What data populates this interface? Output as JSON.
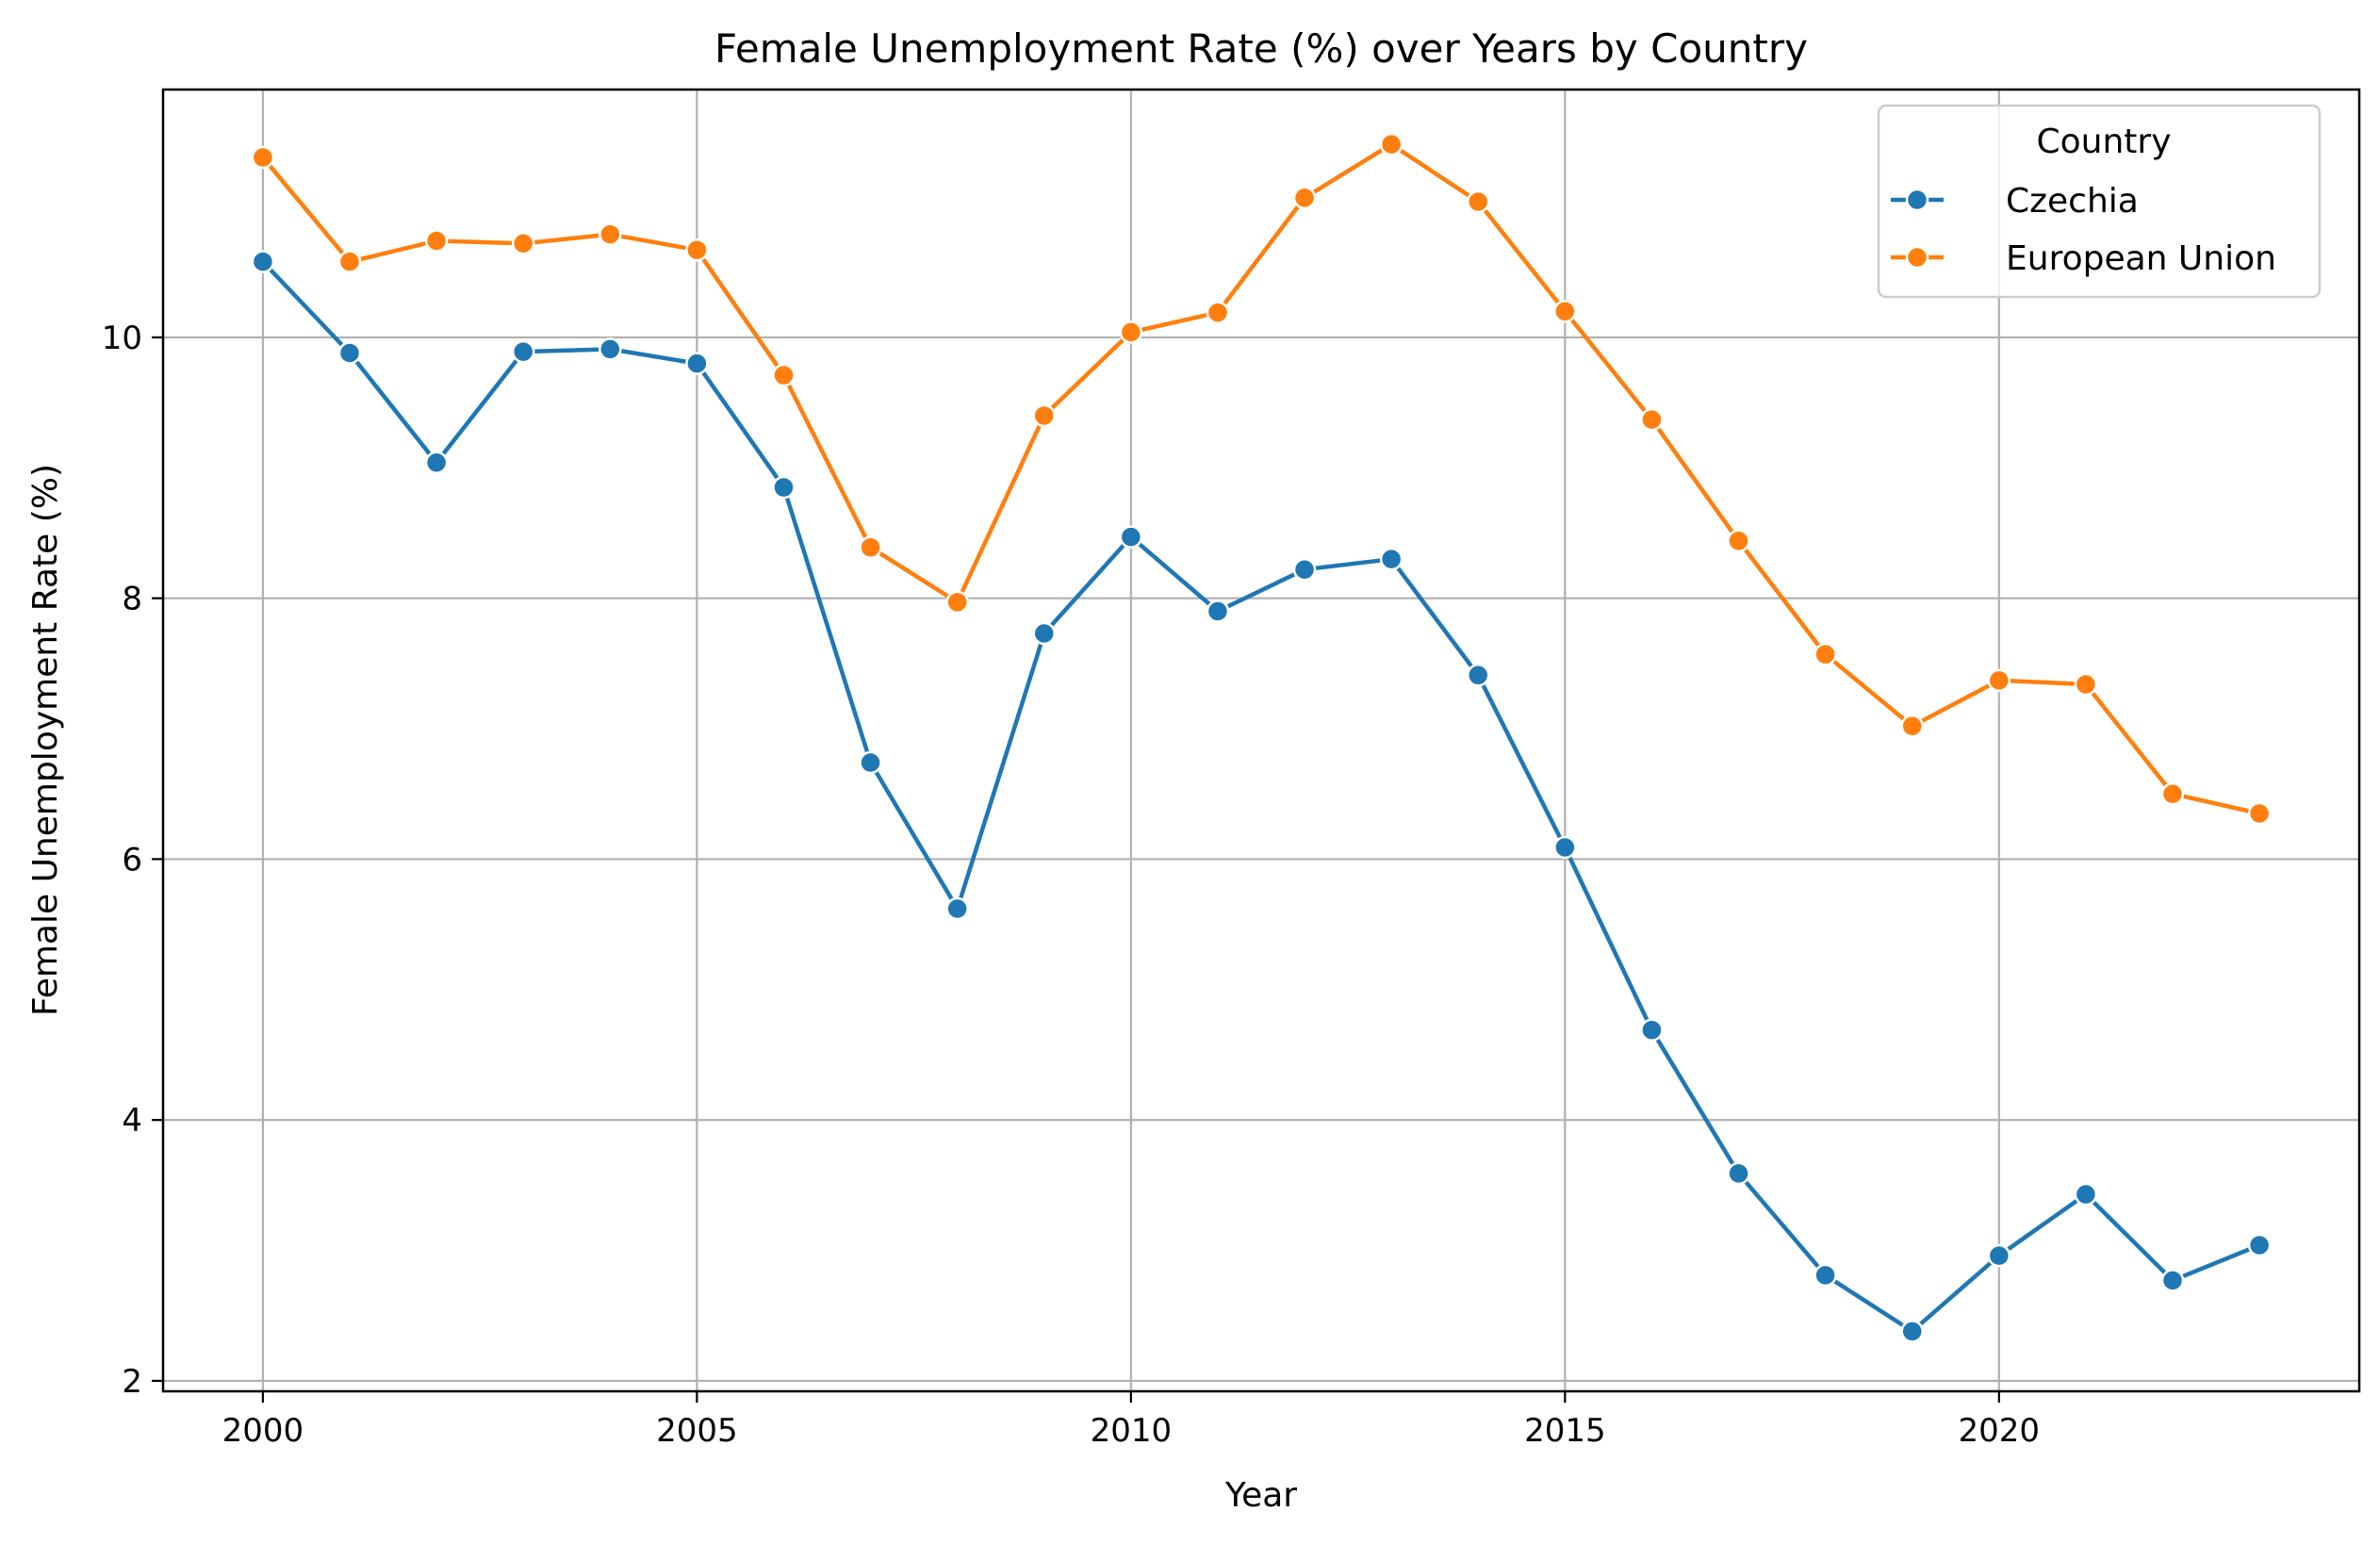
{
  "chart_data": {
    "type": "line",
    "title": "Female Unemployment Rate (%) over Years by Country",
    "xlabel": "Year",
    "ylabel": "Female Unemployment Rate (%)",
    "xlim": [
      1998.85,
      2024.15
    ],
    "ylim": [
      1.92,
      11.9
    ],
    "xticks": [
      2000,
      2005,
      2010,
      2015,
      2020
    ],
    "yticks": [
      2,
      4,
      6,
      8,
      10
    ],
    "grid": true,
    "legend": {
      "title": "Country",
      "position": "top-right"
    },
    "x": [
      2000,
      2001,
      2002,
      2003,
      2004,
      2005,
      2006,
      2007,
      2008,
      2009,
      2010,
      2011,
      2012,
      2013,
      2014,
      2015,
      2016,
      2017,
      2018,
      2019,
      2020,
      2021,
      2022,
      2023
    ],
    "series": [
      {
        "name": "Czechia",
        "color": "#1f77b4",
        "values": [
          10.58,
          9.88,
          9.04,
          9.89,
          9.91,
          9.8,
          8.85,
          6.74,
          5.62,
          7.73,
          8.47,
          7.9,
          8.22,
          8.3,
          7.41,
          6.09,
          4.69,
          3.59,
          2.81,
          2.38,
          2.96,
          3.43,
          2.77,
          3.04
        ]
      },
      {
        "name": "European Union",
        "color": "#ff7f0e",
        "values": [
          11.38,
          10.58,
          10.74,
          10.72,
          10.79,
          10.67,
          9.71,
          8.39,
          7.97,
          9.4,
          10.04,
          10.19,
          11.07,
          11.48,
          11.04,
          10.2,
          9.37,
          8.44,
          7.57,
          7.02,
          7.37,
          7.34,
          6.5,
          6.35
        ]
      }
    ]
  }
}
